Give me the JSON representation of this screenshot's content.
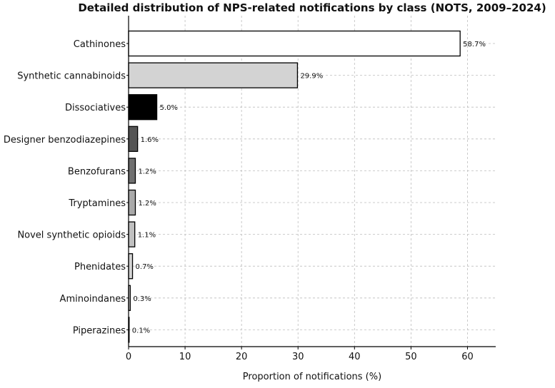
{
  "chart_data": {
    "type": "bar",
    "orientation": "horizontal",
    "title": "Detailed distribution of NPS-related notifications by class (NOTS, 2009–2024)",
    "xlabel": "Proportion of notifications (%)",
    "ylabel": "",
    "xlim": [
      0,
      65
    ],
    "xticks": [
      0,
      10,
      20,
      30,
      40,
      50,
      60
    ],
    "grid": true,
    "categories": [
      "Cathinones",
      "Synthetic cannabinoids",
      "Dissociatives",
      "Designer benzodiazepines",
      "Benzofurans",
      "Tryptamines",
      "Novel synthetic opioids",
      "Phenidates",
      "Aminoindanes",
      "Piperazines"
    ],
    "values": [
      58.7,
      29.9,
      5.0,
      1.6,
      1.2,
      1.2,
      1.1,
      0.7,
      0.3,
      0.1
    ],
    "value_labels": [
      "58.7%",
      "29.9%",
      "5.0%",
      "1.6%",
      "1.2%",
      "1.2%",
      "1.1%",
      "0.7%",
      "0.3%",
      "0.1%"
    ],
    "bar_colors": [
      "#ffffff",
      "#d3d3d3",
      "#000000",
      "#555555",
      "#707070",
      "#a9a9a9",
      "#c0c0c0",
      "#d3d3d3",
      "#d3d3d3",
      "#d3d3d3"
    ],
    "bar_edge_color": "#000000"
  }
}
